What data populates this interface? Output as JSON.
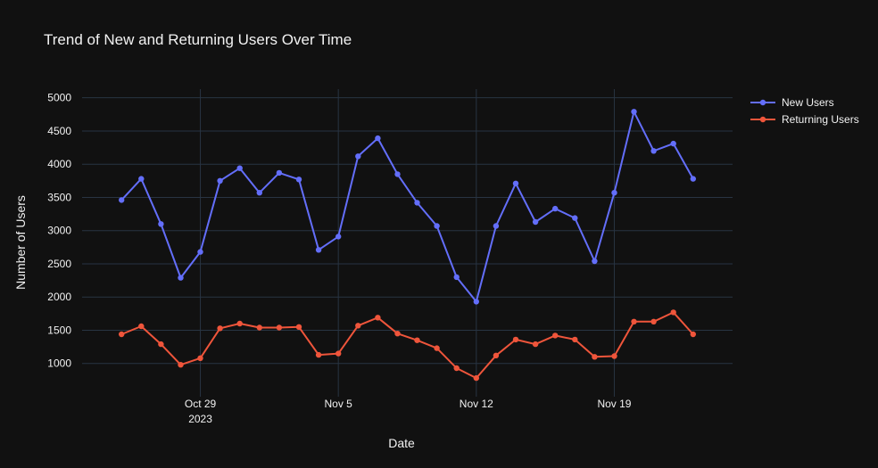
{
  "chart_data": {
    "type": "line",
    "title": "Trend of New and Returning Users Over Time",
    "xlabel": "Date",
    "ylabel": "Number of Users",
    "x_start": "2023-10-25",
    "x_end": "2023-11-23",
    "xlim": [
      "2023-10-23",
      "2023-11-25"
    ],
    "ylim": [
      500,
      5130
    ],
    "x_ticks": [
      {
        "date": "2023-10-29",
        "label": "Oct 29",
        "sublabel": "2023"
      },
      {
        "date": "2023-11-05",
        "label": "Nov 5",
        "sublabel": ""
      },
      {
        "date": "2023-11-12",
        "label": "Nov 12",
        "sublabel": ""
      },
      {
        "date": "2023-11-19",
        "label": "Nov 19",
        "sublabel": ""
      }
    ],
    "y_ticks": [
      1000,
      1500,
      2000,
      2500,
      3000,
      3500,
      4000,
      4500,
      5000
    ],
    "grid": true,
    "legend_position": "top-right",
    "series": [
      {
        "name": "New Users",
        "color": "#636efa",
        "values": [
          3460,
          3780,
          3100,
          2290,
          2680,
          3750,
          3940,
          3570,
          3870,
          3770,
          2710,
          2910,
          4120,
          4390,
          3850,
          3420,
          3070,
          2300,
          1930,
          3070,
          3710,
          3130,
          3330,
          3190,
          2540,
          3570,
          4790,
          4200,
          4310,
          3780
        ]
      },
      {
        "name": "Returning Users",
        "color": "#ef553b",
        "values": [
          1440,
          1560,
          1290,
          980,
          1080,
          1530,
          1600,
          1540,
          1540,
          1550,
          1130,
          1150,
          1570,
          1690,
          1450,
          1350,
          1230,
          930,
          780,
          1120,
          1360,
          1290,
          1420,
          1360,
          1100,
          1110,
          1630,
          1630,
          1770,
          1440
        ]
      }
    ]
  }
}
